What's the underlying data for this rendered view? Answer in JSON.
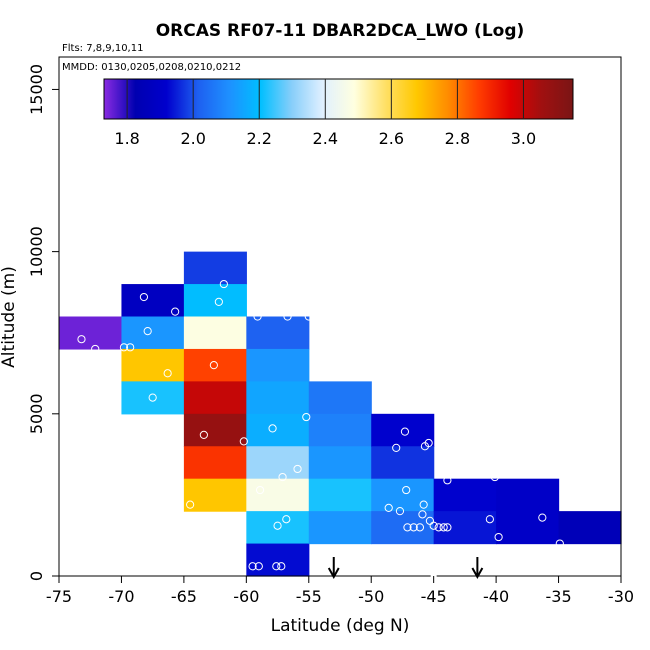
{
  "chart_data": {
    "type": "heatmap",
    "title": "ORCAS RF07-11 DBAR2DCA_LWO (Log)",
    "flights_label": "Flts: 7,8,9,10,11",
    "dates_label": "MMDD: 0130,0205,0208,0210,0212",
    "xlabel": "Latitude (deg N)",
    "ylabel": "Altitude (m)",
    "xlim": [
      -75,
      -30
    ],
    "ylim": [
      0,
      16000
    ],
    "xticks": [
      -75,
      -70,
      -65,
      -60,
      -55,
      -50,
      -45,
      -40,
      -35,
      -30
    ],
    "xtick_labels": [
      "-75",
      "-70",
      "-65",
      "-60",
      "-55",
      "-50",
      "-45",
      "-40",
      "-35",
      "-30"
    ],
    "yticks": [
      0,
      5000,
      10000,
      15000
    ],
    "ytick_labels": [
      "0",
      "5000",
      "10000",
      "15000"
    ],
    "colorbar": {
      "range": [
        1.73,
        3.15
      ],
      "ticks": [
        1.8,
        2.0,
        2.2,
        2.4,
        2.6,
        2.8,
        3.0
      ],
      "tick_labels": [
        "1.8",
        "2.0",
        "2.2",
        "2.4",
        "2.6",
        "2.8",
        "3.0"
      ],
      "colors": [
        "#8a2be2",
        "#0000b0",
        "#0000cd",
        "#1e5ff0",
        "#1e90ff",
        "#00bfff",
        "#87cefa",
        "#e0f0ff",
        "#ffffe0",
        "#ffe066",
        "#ffc800",
        "#ff8c00",
        "#ff3c00",
        "#e00000",
        "#a01010",
        "#7a1515"
      ]
    },
    "cells": [
      {
        "lat": -75,
        "alt": 7000,
        "v": 1.75
      },
      {
        "lat": -70,
        "alt": 8000,
        "v": 1.88
      },
      {
        "lat": -70,
        "alt": 7000,
        "v": 2.12
      },
      {
        "lat": -70,
        "alt": 6000,
        "v": 2.68
      },
      {
        "lat": -70,
        "alt": 5000,
        "v": 2.22
      },
      {
        "lat": -65,
        "alt": 9000,
        "v": 1.98
      },
      {
        "lat": -65,
        "alt": 8000,
        "v": 2.2
      },
      {
        "lat": -65,
        "alt": 7000,
        "v": 2.48
      },
      {
        "lat": -65,
        "alt": 6000,
        "v": 2.86
      },
      {
        "lat": -65,
        "alt": 5000,
        "v": 3.0
      },
      {
        "lat": -65,
        "alt": 4000,
        "v": 3.08
      },
      {
        "lat": -65,
        "alt": 3000,
        "v": 2.88
      },
      {
        "lat": -65,
        "alt": 2000,
        "v": 2.68
      },
      {
        "lat": -60,
        "alt": 7000,
        "v": 2.02
      },
      {
        "lat": -60,
        "alt": 6000,
        "v": 2.12
      },
      {
        "lat": -60,
        "alt": 5000,
        "v": 2.15
      },
      {
        "lat": -60,
        "alt": 4000,
        "v": 2.17
      },
      {
        "lat": -60,
        "alt": 3000,
        "v": 2.32
      },
      {
        "lat": -60,
        "alt": 2000,
        "v": 2.47
      },
      {
        "lat": -60,
        "alt": 1000,
        "v": 2.22
      },
      {
        "lat": -60,
        "alt": 0,
        "v": 1.93
      },
      {
        "lat": -55,
        "alt": 5000,
        "v": 2.06
      },
      {
        "lat": -55,
        "alt": 4000,
        "v": 2.08
      },
      {
        "lat": -55,
        "alt": 3000,
        "v": 2.12
      },
      {
        "lat": -55,
        "alt": 2000,
        "v": 2.22
      },
      {
        "lat": -55,
        "alt": 1000,
        "v": 2.12
      },
      {
        "lat": -50,
        "alt": 4000,
        "v": 1.92
      },
      {
        "lat": -50,
        "alt": 3000,
        "v": 1.97
      },
      {
        "lat": -50,
        "alt": 2000,
        "v": 2.12
      },
      {
        "lat": -50,
        "alt": 1000,
        "v": 2.04
      },
      {
        "lat": -45,
        "alt": 2000,
        "v": 1.92
      },
      {
        "lat": -45,
        "alt": 1000,
        "v": 1.94
      },
      {
        "lat": -40,
        "alt": 2000,
        "v": 1.9
      },
      {
        "lat": -40,
        "alt": 1000,
        "v": 1.9
      },
      {
        "lat": -35,
        "alt": 1000,
        "v": 1.85
      }
    ],
    "points": [
      [
        -73.2,
        7300
      ],
      [
        -72.1,
        7000
      ],
      [
        -69.8,
        7050
      ],
      [
        -69.3,
        7050
      ],
      [
        -68.2,
        8600
      ],
      [
        -67.9,
        7550
      ],
      [
        -65.7,
        8150
      ],
      [
        -66.3,
        6250
      ],
      [
        -67.5,
        5500
      ],
      [
        -61.8,
        9000
      ],
      [
        -62.2,
        8450
      ],
      [
        -62.6,
        6500
      ],
      [
        -63.4,
        4350
      ],
      [
        -60.2,
        4150
      ],
      [
        -64.5,
        2200
      ],
      [
        -59.1,
        8000
      ],
      [
        -56.7,
        8000
      ],
      [
        -55.0,
        8000
      ],
      [
        -55.2,
        4900
      ],
      [
        -57.9,
        4550
      ],
      [
        -55.9,
        3300
      ],
      [
        -57.1,
        3050
      ],
      [
        -58.9,
        2650
      ],
      [
        -57.5,
        1550
      ],
      [
        -56.8,
        1750
      ],
      [
        -59.5,
        300
      ],
      [
        -59.0,
        300
      ],
      [
        -57.6,
        300
      ],
      [
        -57.2,
        300
      ],
      [
        -47.3,
        4450
      ],
      [
        -48.0,
        3950
      ],
      [
        -45.7,
        4000
      ],
      [
        -45.4,
        4100
      ],
      [
        -43.9,
        2950
      ],
      [
        -47.2,
        2650
      ],
      [
        -48.6,
        2100
      ],
      [
        -47.7,
        2000
      ],
      [
        -45.8,
        2200
      ],
      [
        -45.9,
        1900
      ],
      [
        -47.1,
        1500
      ],
      [
        -46.6,
        1500
      ],
      [
        -46.1,
        1500
      ],
      [
        -45.3,
        1700
      ],
      [
        -45.0,
        1550
      ],
      [
        -44.6,
        1500
      ],
      [
        -44.2,
        1500
      ],
      [
        -43.9,
        1500
      ],
      [
        -40.5,
        1750
      ],
      [
        -39.8,
        1200
      ],
      [
        -36.3,
        1800
      ],
      [
        -34.9,
        1000
      ],
      [
        -40.1,
        3050
      ]
    ],
    "arrows": [
      -53.0,
      -41.5
    ],
    "gap_markers": [
      -45.0
    ]
  }
}
